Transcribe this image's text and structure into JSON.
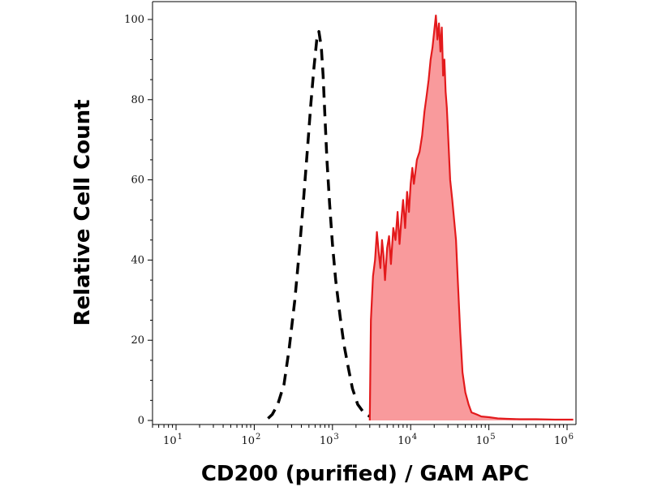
{
  "chart_data": {
    "type": "area",
    "xlabel": "CD200 (purified) / GAM APC",
    "ylabel": "Relative Cell Count",
    "x_scale": "log",
    "xlim": [
      5,
      1300000
    ],
    "ylim": [
      0,
      105
    ],
    "x_ticks": [
      {
        "base": "10",
        "exp": "1",
        "value": 10
      },
      {
        "base": "10",
        "exp": "2",
        "value": 100
      },
      {
        "base": "10",
        "exp": "3",
        "value": 1000
      },
      {
        "base": "10",
        "exp": "4",
        "value": 10000
      },
      {
        "base": "10",
        "exp": "5",
        "value": 100000
      },
      {
        "base": "10",
        "exp": "6",
        "value": 1000000
      }
    ],
    "y_ticks": [
      0,
      20,
      40,
      60,
      80,
      100
    ],
    "y_tick_labels": [
      "0",
      "20",
      "40",
      "60",
      "80",
      "100"
    ],
    "grid": false,
    "legend": "none",
    "series": [
      {
        "style": "dashed",
        "color": "#000000",
        "fill": false,
        "x": [
          150,
          170,
          200,
          240,
          280,
          330,
          380,
          430,
          480,
          530,
          580,
          630,
          670,
          720,
          760,
          800,
          850,
          920,
          1000,
          1100,
          1250,
          1400,
          1600,
          1800,
          2100,
          2500,
          3000,
          3300
        ],
        "y": [
          0.5,
          1.5,
          4,
          9,
          18,
          30,
          43,
          56,
          68,
          79,
          88,
          95,
          97,
          93,
          86,
          76,
          65,
          54,
          44,
          35,
          26,
          19,
          13,
          8,
          4,
          2,
          1,
          0.3
        ]
      },
      {
        "style": "solid",
        "color": "#e31a1c",
        "fill": true,
        "fill_color": "#f99a9c",
        "x": [
          3000,
          3100,
          3300,
          3500,
          3700,
          3900,
          4100,
          4300,
          4500,
          4700,
          5000,
          5300,
          5600,
          6000,
          6400,
          6800,
          7200,
          7600,
          8000,
          8500,
          9000,
          9500,
          10000,
          10500,
          11000,
          12000,
          13000,
          14000,
          15000,
          16000,
          17000,
          18000,
          19000,
          20000,
          21000,
          22000,
          23000,
          24000,
          25000,
          26000,
          27000,
          28000,
          29000,
          30000,
          32000,
          34000,
          36000,
          38000,
          40000,
          43000,
          46000,
          50000,
          55000,
          60000,
          70000,
          80000,
          100000,
          130000,
          170000,
          250000,
          400000,
          700000,
          1200000
        ],
        "y": [
          0,
          25,
          36,
          40,
          47,
          42,
          38,
          45,
          41,
          35,
          43,
          46,
          39,
          48,
          45,
          52,
          44,
          50,
          55,
          48,
          57,
          52,
          59,
          63,
          59,
          65,
          67,
          71,
          77,
          81,
          85,
          90,
          93,
          97,
          101,
          95,
          99,
          92,
          98,
          86,
          90,
          82,
          78,
          72,
          60,
          55,
          50,
          45,
          35,
          22,
          12,
          7,
          4,
          2,
          1.5,
          1,
          0.8,
          0.5,
          0.4,
          0.3,
          0.3,
          0.2,
          0.2
        ]
      }
    ]
  }
}
